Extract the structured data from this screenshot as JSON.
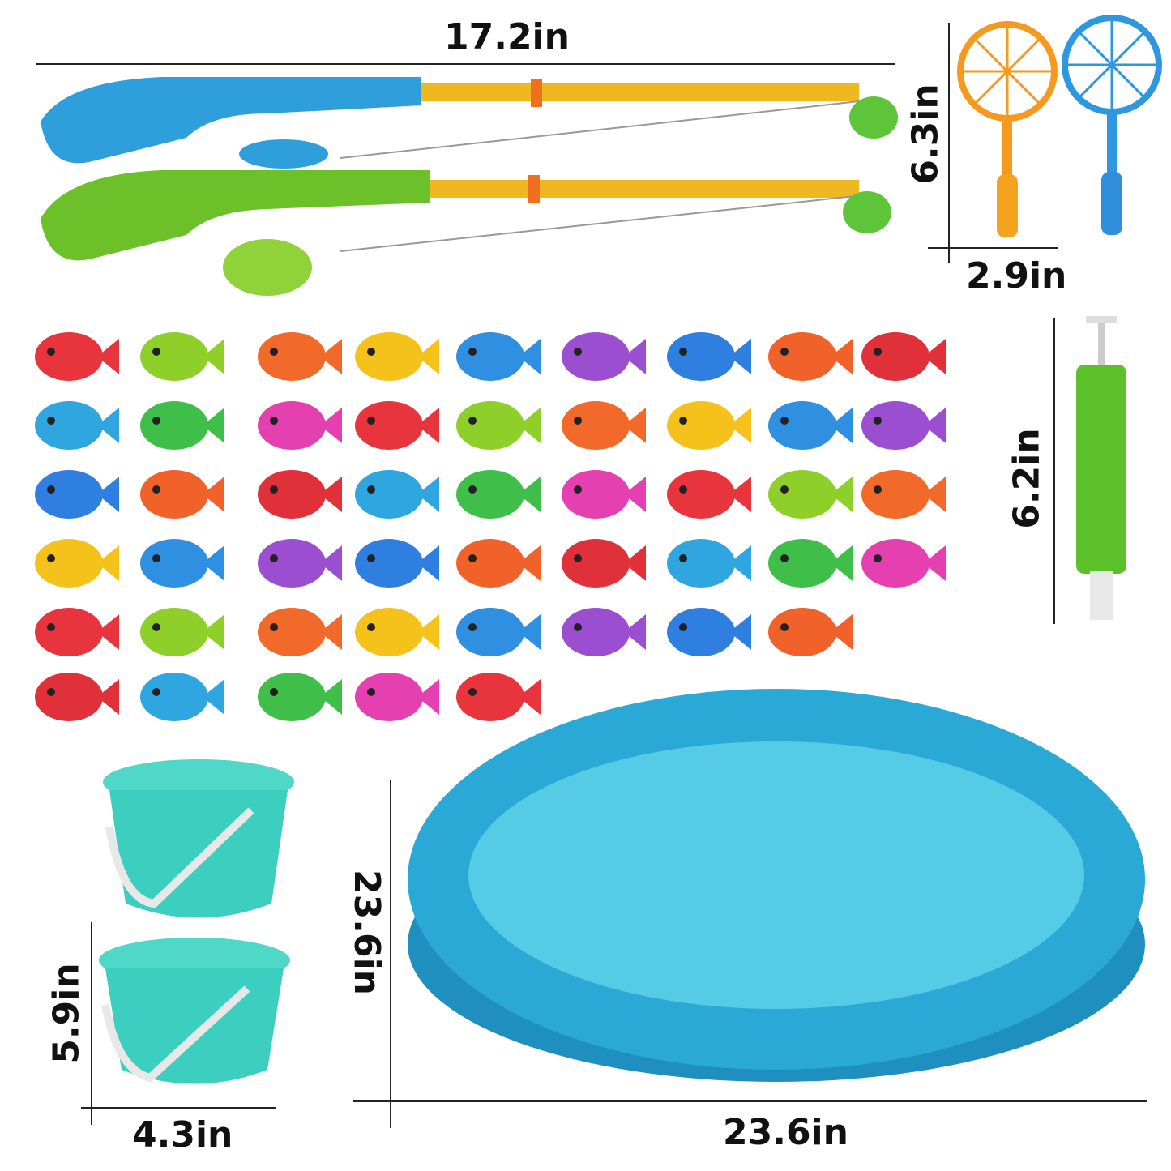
{
  "dimensions": {
    "rod_length": "17.2in",
    "net_height": "6.3in",
    "net_width": "2.9in",
    "pump_height": "6.2in",
    "pool_height": "23.6in",
    "pool_width": "23.6in",
    "bucket_height": "5.9in",
    "bucket_width": "4.3in"
  },
  "colors": {
    "rod_blue": "#2f9fdc",
    "rod_green": "#6cc12a",
    "rod_yellow": "#f0b820",
    "net_orange": "#f59a1e",
    "net_blue": "#2f97e0",
    "pump_green": "#5cc02a",
    "pool_blue": "#2aa8d6",
    "pool_inner": "#55cbe6",
    "bucket_teal": "#3ccfc0",
    "fish": [
      "#e8343c",
      "#8fcf2a",
      "#f26a2a",
      "#f5c21c",
      "#2f8fe0",
      "#9b4fd0",
      "#2f7fe0",
      "#f0622a",
      "#e0303a",
      "#2fa6e0",
      "#3fbf4a",
      "#e440b0"
    ]
  }
}
